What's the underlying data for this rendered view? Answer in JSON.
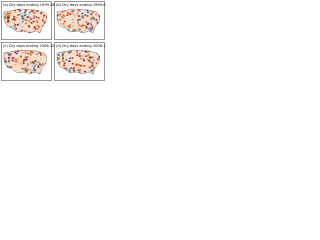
{
  "panels": [
    {
      "title": "(a) Dry days ending 1999-08"
    },
    {
      "title": "(b) Dry days ending 1999-09"
    },
    {
      "title": "(c) Dry days ending 2006-10"
    },
    {
      "title": "(d) Dry days ending 2006-11"
    }
  ]
}
